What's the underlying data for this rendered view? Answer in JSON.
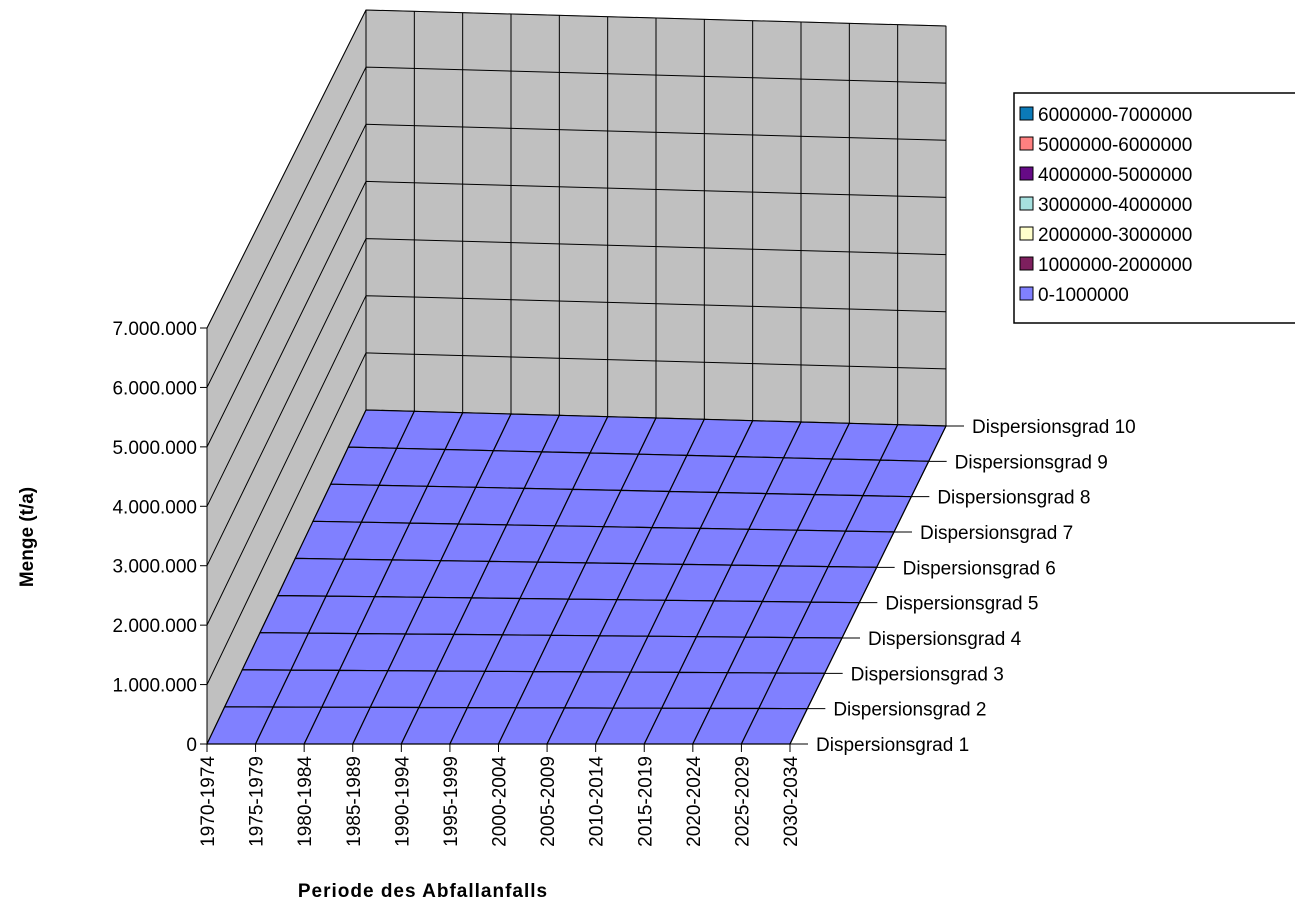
{
  "chart_data": {
    "type": "surface-3d",
    "xlabel": "Periode des Abfallanfalls",
    "ylabel": "Menge (t/a)",
    "zlabel": "",
    "x_categories": [
      "1970-1974",
      "1975-1979",
      "1980-1984",
      "1985-1989",
      "1990-1994",
      "1995-1999",
      "2000-2004",
      "2005-2009",
      "2010-2014",
      "2015-2019",
      "2020-2024",
      "2025-2029",
      "2030-2034"
    ],
    "depth_categories": [
      "Dispersionsgrad 1",
      "Dispersionsgrad 2",
      "Dispersionsgrad 3",
      "Dispersionsgrad 4",
      "Dispersionsgrad 5",
      "Dispersionsgrad 6",
      "Dispersionsgrad 7",
      "Dispersionsgrad 8",
      "Dispersionsgrad 9",
      "Dispersionsgrad 10"
    ],
    "y_ticks": [
      "0",
      "1.000.000",
      "2.000.000",
      "3.000.000",
      "4.000.000",
      "5.000.000",
      "6.000.000",
      "7.000.000"
    ],
    "ylim": [
      0,
      7000000
    ],
    "legend": {
      "position": "right",
      "entries": [
        {
          "label": "6000000-7000000",
          "color": "#0B7AB8"
        },
        {
          "label": "5000000-6000000",
          "color": "#FF8080"
        },
        {
          "label": "4000000-5000000",
          "color": "#660A86"
        },
        {
          "label": "3000000-4000000",
          "color": "#A6E1DF"
        },
        {
          "label": "2000000-3000000",
          "color": "#FFFFCC"
        },
        {
          "label": "1000000-2000000",
          "color": "#7E1F5E"
        },
        {
          "label": "0-1000000",
          "color": "#8080FF"
        }
      ]
    },
    "values": [
      [
        0,
        0,
        0,
        0,
        0,
        0,
        0,
        0,
        0,
        0,
        0,
        0,
        0
      ],
      [
        0,
        0,
        0,
        0,
        0,
        0,
        0,
        0,
        0,
        0,
        0,
        0,
        0
      ],
      [
        0,
        0,
        0,
        0,
        0,
        0,
        0,
        0,
        0,
        0,
        0,
        0,
        0
      ],
      [
        0,
        0,
        0,
        0,
        0,
        0,
        0,
        0,
        0,
        0,
        0,
        0,
        0
      ],
      [
        0,
        0,
        0,
        0,
        0,
        0,
        0,
        0,
        0,
        0,
        0,
        0,
        0
      ],
      [
        0,
        0,
        0,
        0,
        0,
        0,
        0,
        0,
        0,
        0,
        0,
        0,
        0
      ],
      [
        0,
        0,
        0,
        0,
        0,
        0,
        0,
        0,
        0,
        0,
        0,
        0,
        0
      ],
      [
        0,
        0,
        0,
        0,
        0,
        0,
        0,
        0,
        0,
        0,
        0,
        0,
        0
      ],
      [
        0,
        0,
        0,
        0,
        0,
        0,
        0,
        0,
        0,
        0,
        0,
        0,
        0
      ],
      [
        0,
        0,
        0,
        0,
        0,
        0,
        0,
        0,
        0,
        0,
        0,
        0,
        0
      ]
    ]
  }
}
